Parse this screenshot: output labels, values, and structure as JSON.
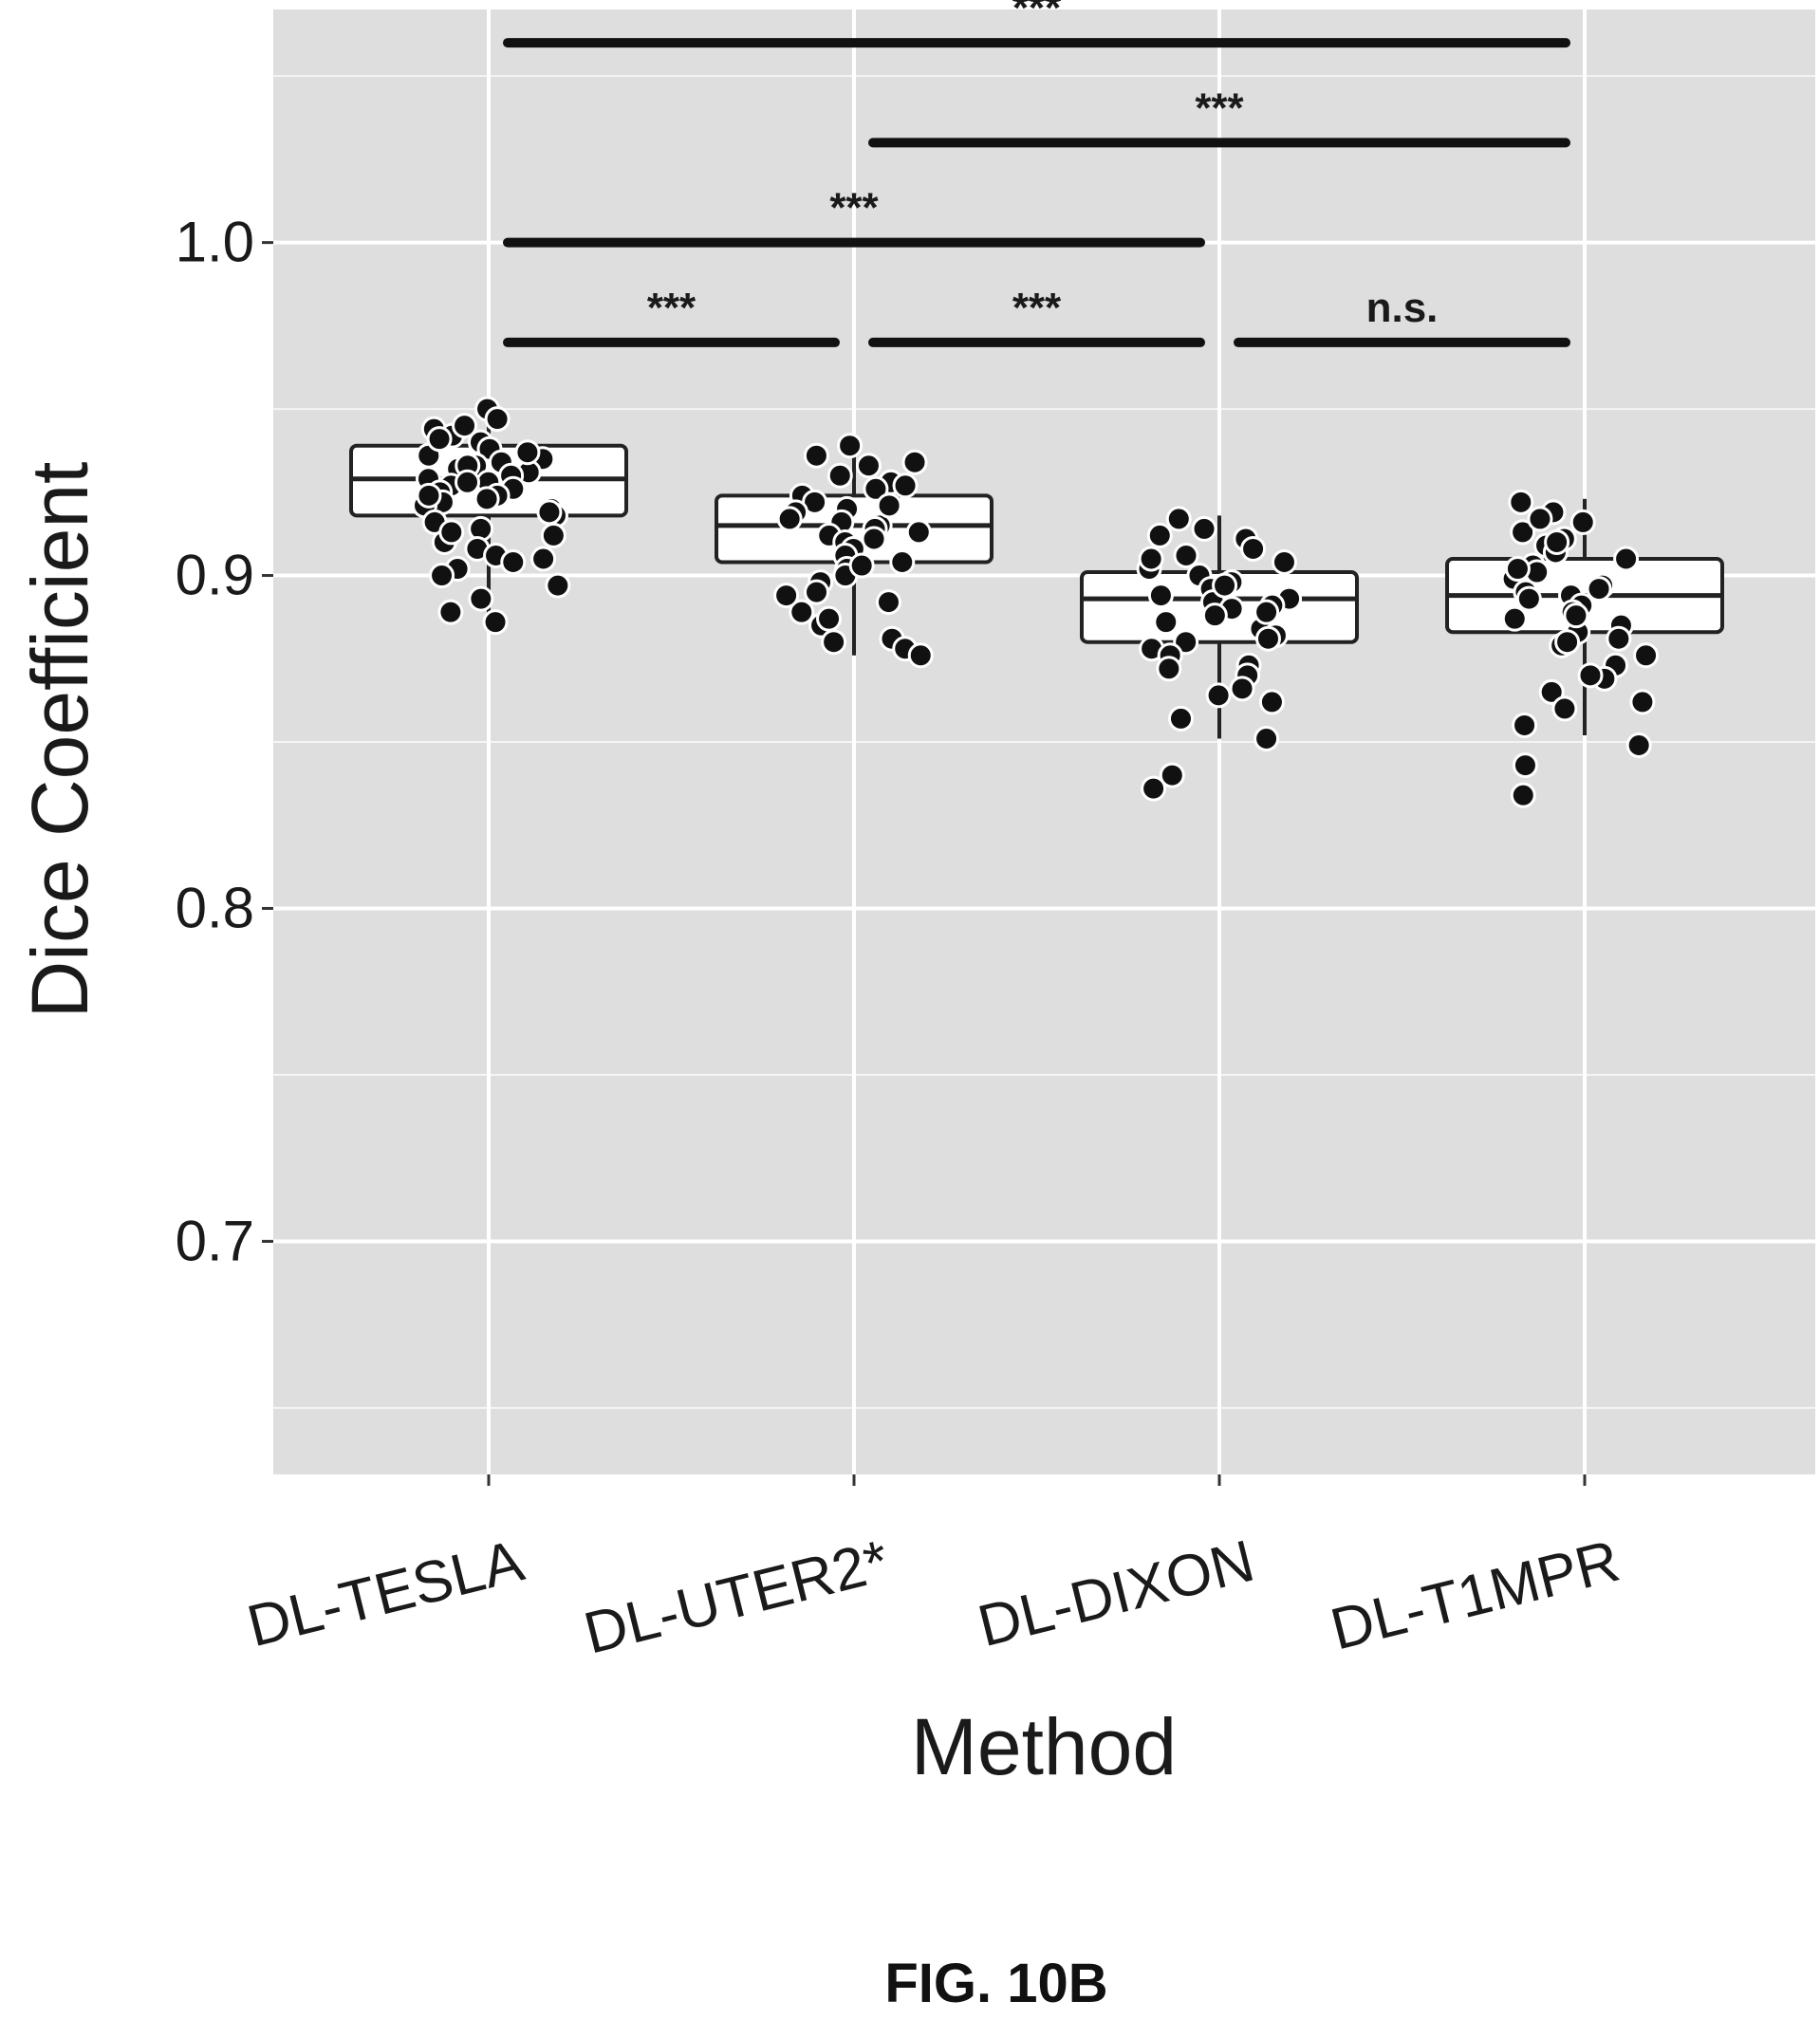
{
  "figure_caption": "FIG. 10B",
  "colors": {
    "panel_background": "#dedede",
    "grid_major": "#ffffff",
    "points": "#111111",
    "box_fill": "#ffffff",
    "box_stroke": "#222222"
  },
  "chart_data": {
    "type": "box",
    "title": "",
    "xlabel": "Method",
    "ylabel": "Dice Coefficient",
    "ylim": [
      0.63,
      1.07
    ],
    "yticks": [
      0.7,
      0.8,
      0.9,
      1.0
    ],
    "ytick_labels": [
      "0.7",
      "0.8",
      "0.9",
      "1.0"
    ],
    "grid": true,
    "categories": [
      "DL-TESLA",
      "DL-UTER2*",
      "DL-DIXON",
      "DL-T1MPR"
    ],
    "boxes": [
      {
        "q1": 0.918,
        "median": 0.929,
        "q3": 0.939,
        "whisker_low": 0.886,
        "whisker_high": 0.951
      },
      {
        "q1": 0.904,
        "median": 0.915,
        "q3": 0.924,
        "whisker_low": 0.876,
        "whisker_high": 0.94
      },
      {
        "q1": 0.88,
        "median": 0.893,
        "q3": 0.901,
        "whisker_low": 0.851,
        "whisker_high": 0.918
      },
      {
        "q1": 0.883,
        "median": 0.894,
        "q3": 0.905,
        "whisker_low": 0.852,
        "whisker_high": 0.923
      }
    ],
    "points": [
      [
        0.95,
        0.947,
        0.944,
        0.942,
        0.94,
        0.938,
        0.936,
        0.935,
        0.934,
        0.933,
        0.932,
        0.931,
        0.93,
        0.929,
        0.928,
        0.927,
        0.926,
        0.925,
        0.924,
        0.923,
        0.922,
        0.921,
        0.92,
        0.918,
        0.916,
        0.914,
        0.912,
        0.91,
        0.908,
        0.906,
        0.904,
        0.902,
        0.9,
        0.897,
        0.893,
        0.889,
        0.886,
        0.945,
        0.941,
        0.937,
        0.933,
        0.928,
        0.924,
        0.919,
        0.913,
        0.905
      ],
      [
        0.939,
        0.936,
        0.933,
        0.93,
        0.928,
        0.926,
        0.924,
        0.922,
        0.92,
        0.919,
        0.917,
        0.916,
        0.915,
        0.914,
        0.913,
        0.912,
        0.91,
        0.908,
        0.906,
        0.904,
        0.902,
        0.9,
        0.898,
        0.895,
        0.892,
        0.889,
        0.885,
        0.881,
        0.878,
        0.876,
        0.934,
        0.927,
        0.921,
        0.911,
        0.903,
        0.894,
        0.887,
        0.88
      ],
      [
        0.917,
        0.914,
        0.911,
        0.908,
        0.906,
        0.904,
        0.902,
        0.9,
        0.898,
        0.896,
        0.894,
        0.893,
        0.892,
        0.891,
        0.89,
        0.888,
        0.886,
        0.884,
        0.882,
        0.88,
        0.878,
        0.876,
        0.873,
        0.87,
        0.866,
        0.862,
        0.857,
        0.851,
        0.84,
        0.836,
        0.912,
        0.905,
        0.897,
        0.889,
        0.881,
        0.872,
        0.864
      ],
      [
        0.922,
        0.919,
        0.916,
        0.913,
        0.911,
        0.909,
        0.907,
        0.905,
        0.903,
        0.901,
        0.899,
        0.897,
        0.895,
        0.894,
        0.893,
        0.891,
        0.889,
        0.887,
        0.885,
        0.883,
        0.881,
        0.879,
        0.876,
        0.873,
        0.869,
        0.865,
        0.86,
        0.855,
        0.849,
        0.843,
        0.834,
        0.917,
        0.91,
        0.902,
        0.896,
        0.888,
        0.88,
        0.87,
        0.862
      ]
    ],
    "comparisons": [
      {
        "from": "DL-TESLA",
        "to": "DL-UTER2*",
        "label": "***",
        "y": 0.97
      },
      {
        "from": "DL-UTER2*",
        "to": "DL-DIXON",
        "label": "***",
        "y": 0.97
      },
      {
        "from": "DL-DIXON",
        "to": "DL-T1MPR",
        "label": "n.s.",
        "y": 0.97
      },
      {
        "from": "DL-TESLA",
        "to": "DL-DIXON",
        "label": "***",
        "y": 1.0
      },
      {
        "from": "DL-UTER2*",
        "to": "DL-T1MPR",
        "label": "***",
        "y": 1.03
      },
      {
        "from": "DL-TESLA",
        "to": "DL-T1MPR",
        "label": "***",
        "y": 1.06
      }
    ]
  }
}
